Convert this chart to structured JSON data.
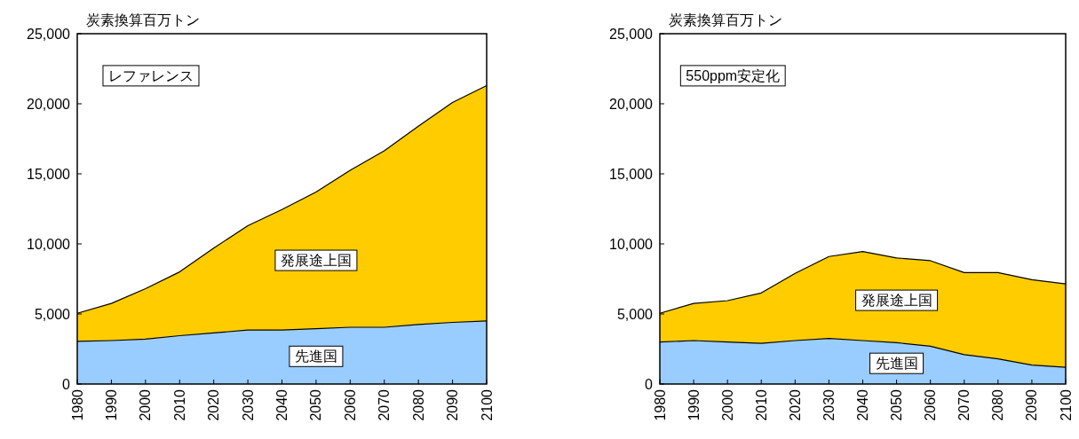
{
  "chart_data": [
    {
      "type": "area",
      "stacked": true,
      "title": "レファレンス",
      "ylabel": "炭素換算百万トン",
      "categories": [
        "1980",
        "1990",
        "2000",
        "2010",
        "2020",
        "2030",
        "2040",
        "2050",
        "2060",
        "2070",
        "2080",
        "2090",
        "2100"
      ],
      "series": [
        {
          "name": "先進国",
          "color": "#99ccff",
          "values": [
            3050,
            3100,
            3200,
            3450,
            3650,
            3850,
            3850,
            3950,
            4050,
            4050,
            4250,
            4400,
            4500
          ]
        },
        {
          "name": "発展途上国",
          "color": "#ffcc00",
          "values": [
            2000,
            2650,
            3600,
            4550,
            6050,
            7450,
            8600,
            9750,
            11200,
            12600,
            14150,
            15700,
            16800
          ]
        }
      ],
      "ylim": [
        0,
        25000
      ],
      "yticks": [
        0,
        {
          "value": 5000,
          "label": "5,000"
        },
        {
          "value": 10000,
          "label": "10,000"
        },
        {
          "value": 15000,
          "label": "15,000"
        },
        {
          "value": 20000,
          "label": "20,000"
        },
        {
          "value": 25000,
          "label": "25,000"
        }
      ]
    },
    {
      "type": "area",
      "stacked": true,
      "title": "550ppm安定化",
      "ylabel": "炭素換算百万トン",
      "categories": [
        "1980",
        "1990",
        "2000",
        "2010",
        "2020",
        "2030",
        "2040",
        "2050",
        "2060",
        "2070",
        "2080",
        "2090",
        "2100"
      ],
      "series": [
        {
          "name": "先進国",
          "color": "#99ccff",
          "values": [
            3000,
            3100,
            3000,
            2900,
            3100,
            3250,
            3100,
            2950,
            2700,
            2100,
            1800,
            1350,
            1200
          ]
        },
        {
          "name": "発展途上国",
          "color": "#ffcc00",
          "values": [
            2050,
            2650,
            2950,
            3600,
            4800,
            5850,
            6350,
            6050,
            6100,
            5850,
            6150,
            6100,
            5950
          ]
        }
      ],
      "ylim": [
        0,
        25000
      ],
      "yticks": [
        0,
        {
          "value": 5000,
          "label": "5,000"
        },
        {
          "value": 10000,
          "label": "10,000"
        },
        {
          "value": 15000,
          "label": "15,000"
        },
        {
          "value": 20000,
          "label": "20,000"
        },
        {
          "value": 25000,
          "label": "25,000"
        }
      ]
    }
  ]
}
